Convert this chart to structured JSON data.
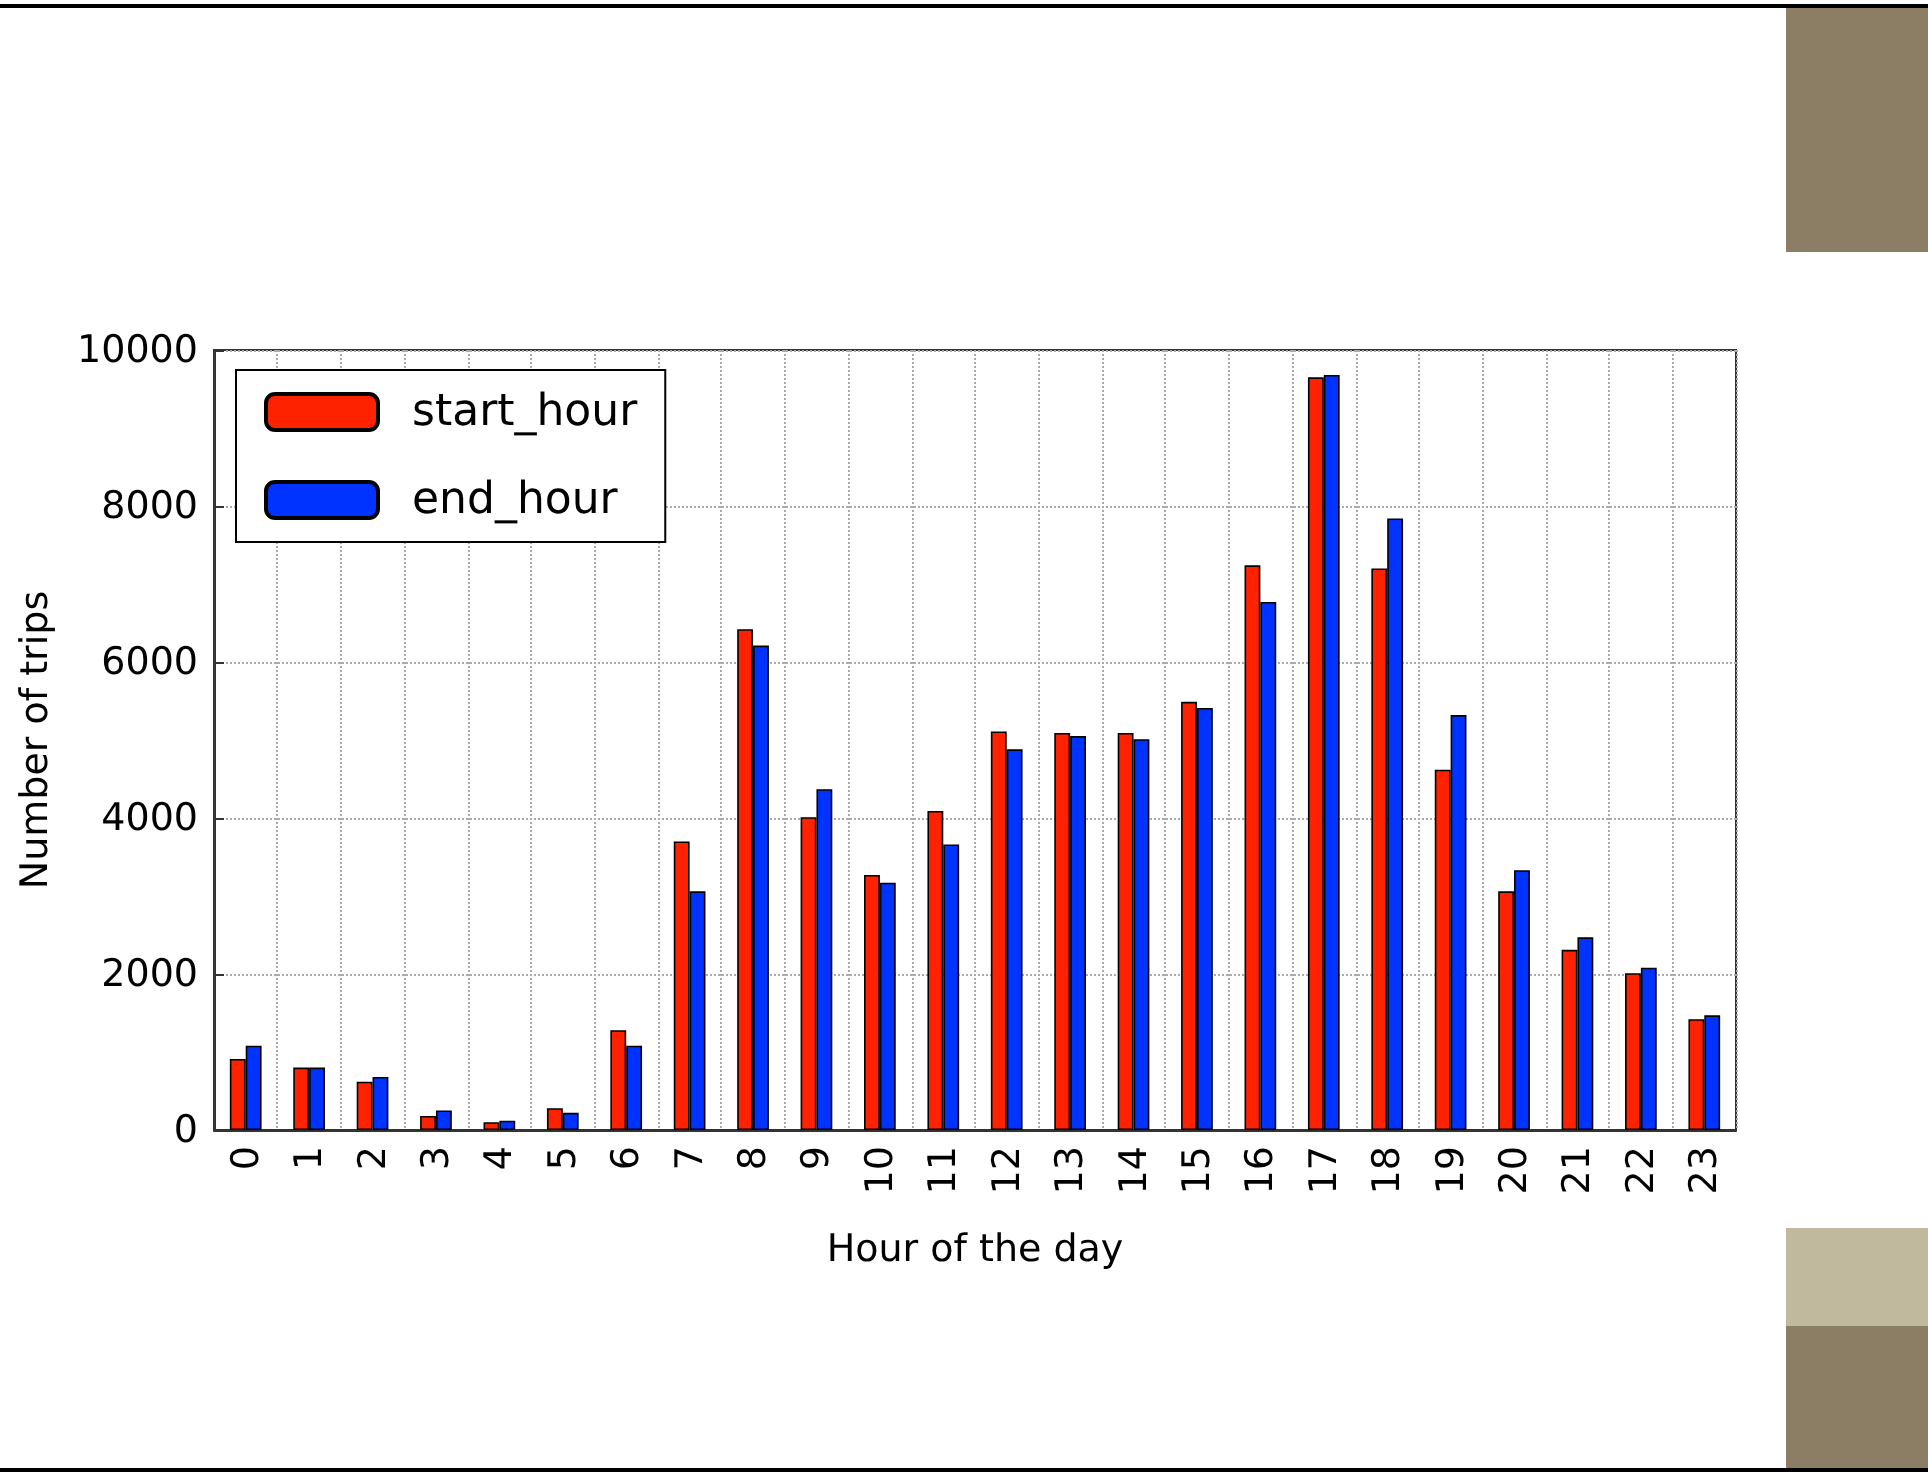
{
  "chart_data": {
    "type": "bar",
    "xlabel": "Hour of the day",
    "ylabel": "Number of trips",
    "categories": [
      "0",
      "1",
      "2",
      "3",
      "4",
      "5",
      "6",
      "7",
      "8",
      "9",
      "10",
      "11",
      "12",
      "13",
      "14",
      "15",
      "16",
      "17",
      "18",
      "19",
      "20",
      "21",
      "22",
      "23"
    ],
    "series": [
      {
        "name": "start_hour",
        "color": "#ff2200",
        "values": [
          910,
          800,
          620,
          180,
          100,
          280,
          1280,
          3700,
          6420,
          4010,
          3270,
          4090,
          5110,
          5090,
          5090,
          5490,
          7240,
          9650,
          7200,
          4620,
          3060,
          2310,
          2010,
          1420
        ]
      },
      {
        "name": "end_hour",
        "color": "#0033ff",
        "values": [
          1080,
          800,
          680,
          250,
          120,
          220,
          1080,
          3060,
          6210,
          4370,
          3170,
          3660,
          4880,
          5050,
          5010,
          5410,
          6770,
          9680,
          7840,
          5320,
          3330,
          2470,
          2080,
          1470
        ]
      }
    ],
    "ylim": [
      0,
      10000
    ],
    "yticks": [
      0,
      2000,
      4000,
      6000,
      8000,
      10000
    ],
    "grid": true,
    "legend": "top left"
  }
}
